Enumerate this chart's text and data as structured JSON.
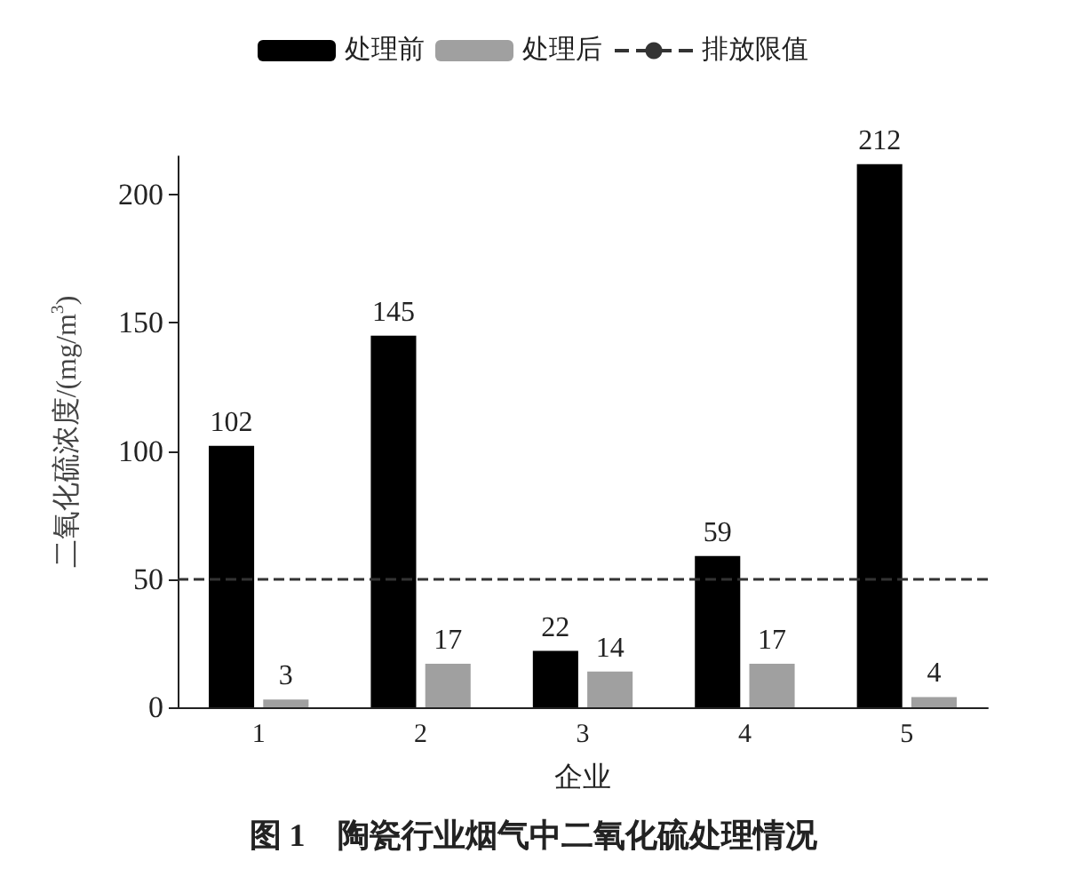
{
  "chart_data": {
    "type": "bar",
    "title": "图 1　陶瓷行业烟气中二氧化硫处理情况",
    "xlabel": "企业",
    "ylabel": "二氧化硫浓度/(mg/m$^{3}$)",
    "categories": [
      "1",
      "2",
      "3",
      "4",
      "5"
    ],
    "series": [
      {
        "name": "处理前",
        "color": "#000000",
        "values": [
          102,
          145,
          22,
          59,
          212
        ]
      },
      {
        "name": "处理后",
        "color": "#a0a0a0",
        "values": [
          3,
          17,
          14,
          17,
          4
        ]
      }
    ],
    "ref_lines": [
      {
        "axis": "y",
        "value": 50,
        "label": "排放限值",
        "color": "#333333",
        "line_style": "dashed"
      }
    ],
    "ylim": [
      0,
      215
    ],
    "yticks": [
      0,
      50,
      100,
      150,
      200
    ],
    "data_labels": true,
    "legend": "top",
    "grid": false
  }
}
